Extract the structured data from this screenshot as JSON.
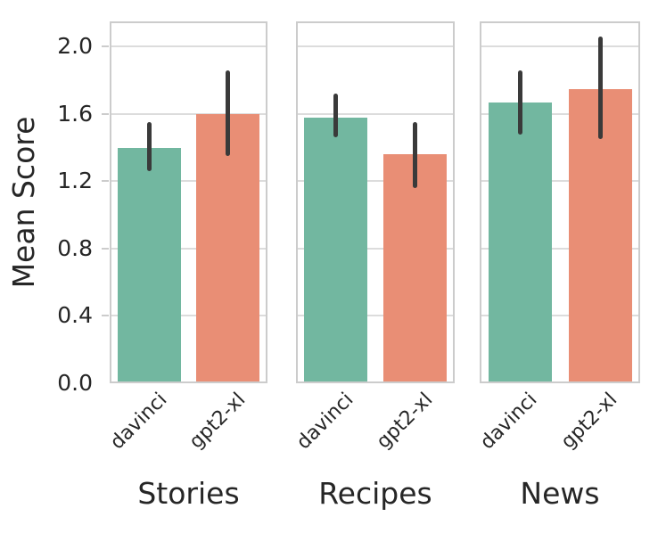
{
  "chart_data": {
    "type": "bar",
    "title": "",
    "ylabel": "Mean Score",
    "ylim": [
      0,
      2.15
    ],
    "yticks": [
      "0.0",
      "0.4",
      "0.8",
      "1.2",
      "1.6",
      "2.0"
    ],
    "ytick_values": [
      0.0,
      0.4,
      0.8,
      1.2,
      1.6,
      2.0
    ],
    "grid": true,
    "legend": "none",
    "categories": [
      "davinci",
      "gpt2-xl"
    ],
    "panels": [
      {
        "title": "Stories",
        "series": [
          {
            "name": "davinci",
            "value": 1.4,
            "ci_low": 1.27,
            "ci_high": 1.54
          },
          {
            "name": "gpt2-xl",
            "value": 1.6,
            "ci_low": 1.36,
            "ci_high": 1.85
          }
        ]
      },
      {
        "title": "Recipes",
        "series": [
          {
            "name": "davinci",
            "value": 1.58,
            "ci_low": 1.47,
            "ci_high": 1.71
          },
          {
            "name": "gpt2-xl",
            "value": 1.36,
            "ci_low": 1.17,
            "ci_high": 1.54
          }
        ]
      },
      {
        "title": "News",
        "series": [
          {
            "name": "davinci",
            "value": 1.67,
            "ci_low": 1.49,
            "ci_high": 1.85
          },
          {
            "name": "gpt2-xl",
            "value": 1.75,
            "ci_low": 1.46,
            "ci_high": 2.05
          }
        ]
      }
    ],
    "colors": {
      "davinci": "#72b7a0",
      "gpt2-xl": "#e98e75",
      "error_bar": "#3a3a3a",
      "gridline": "#dcdcdc",
      "spine": "#cccccc",
      "text": "#262626",
      "background": "#ffffff"
    }
  }
}
